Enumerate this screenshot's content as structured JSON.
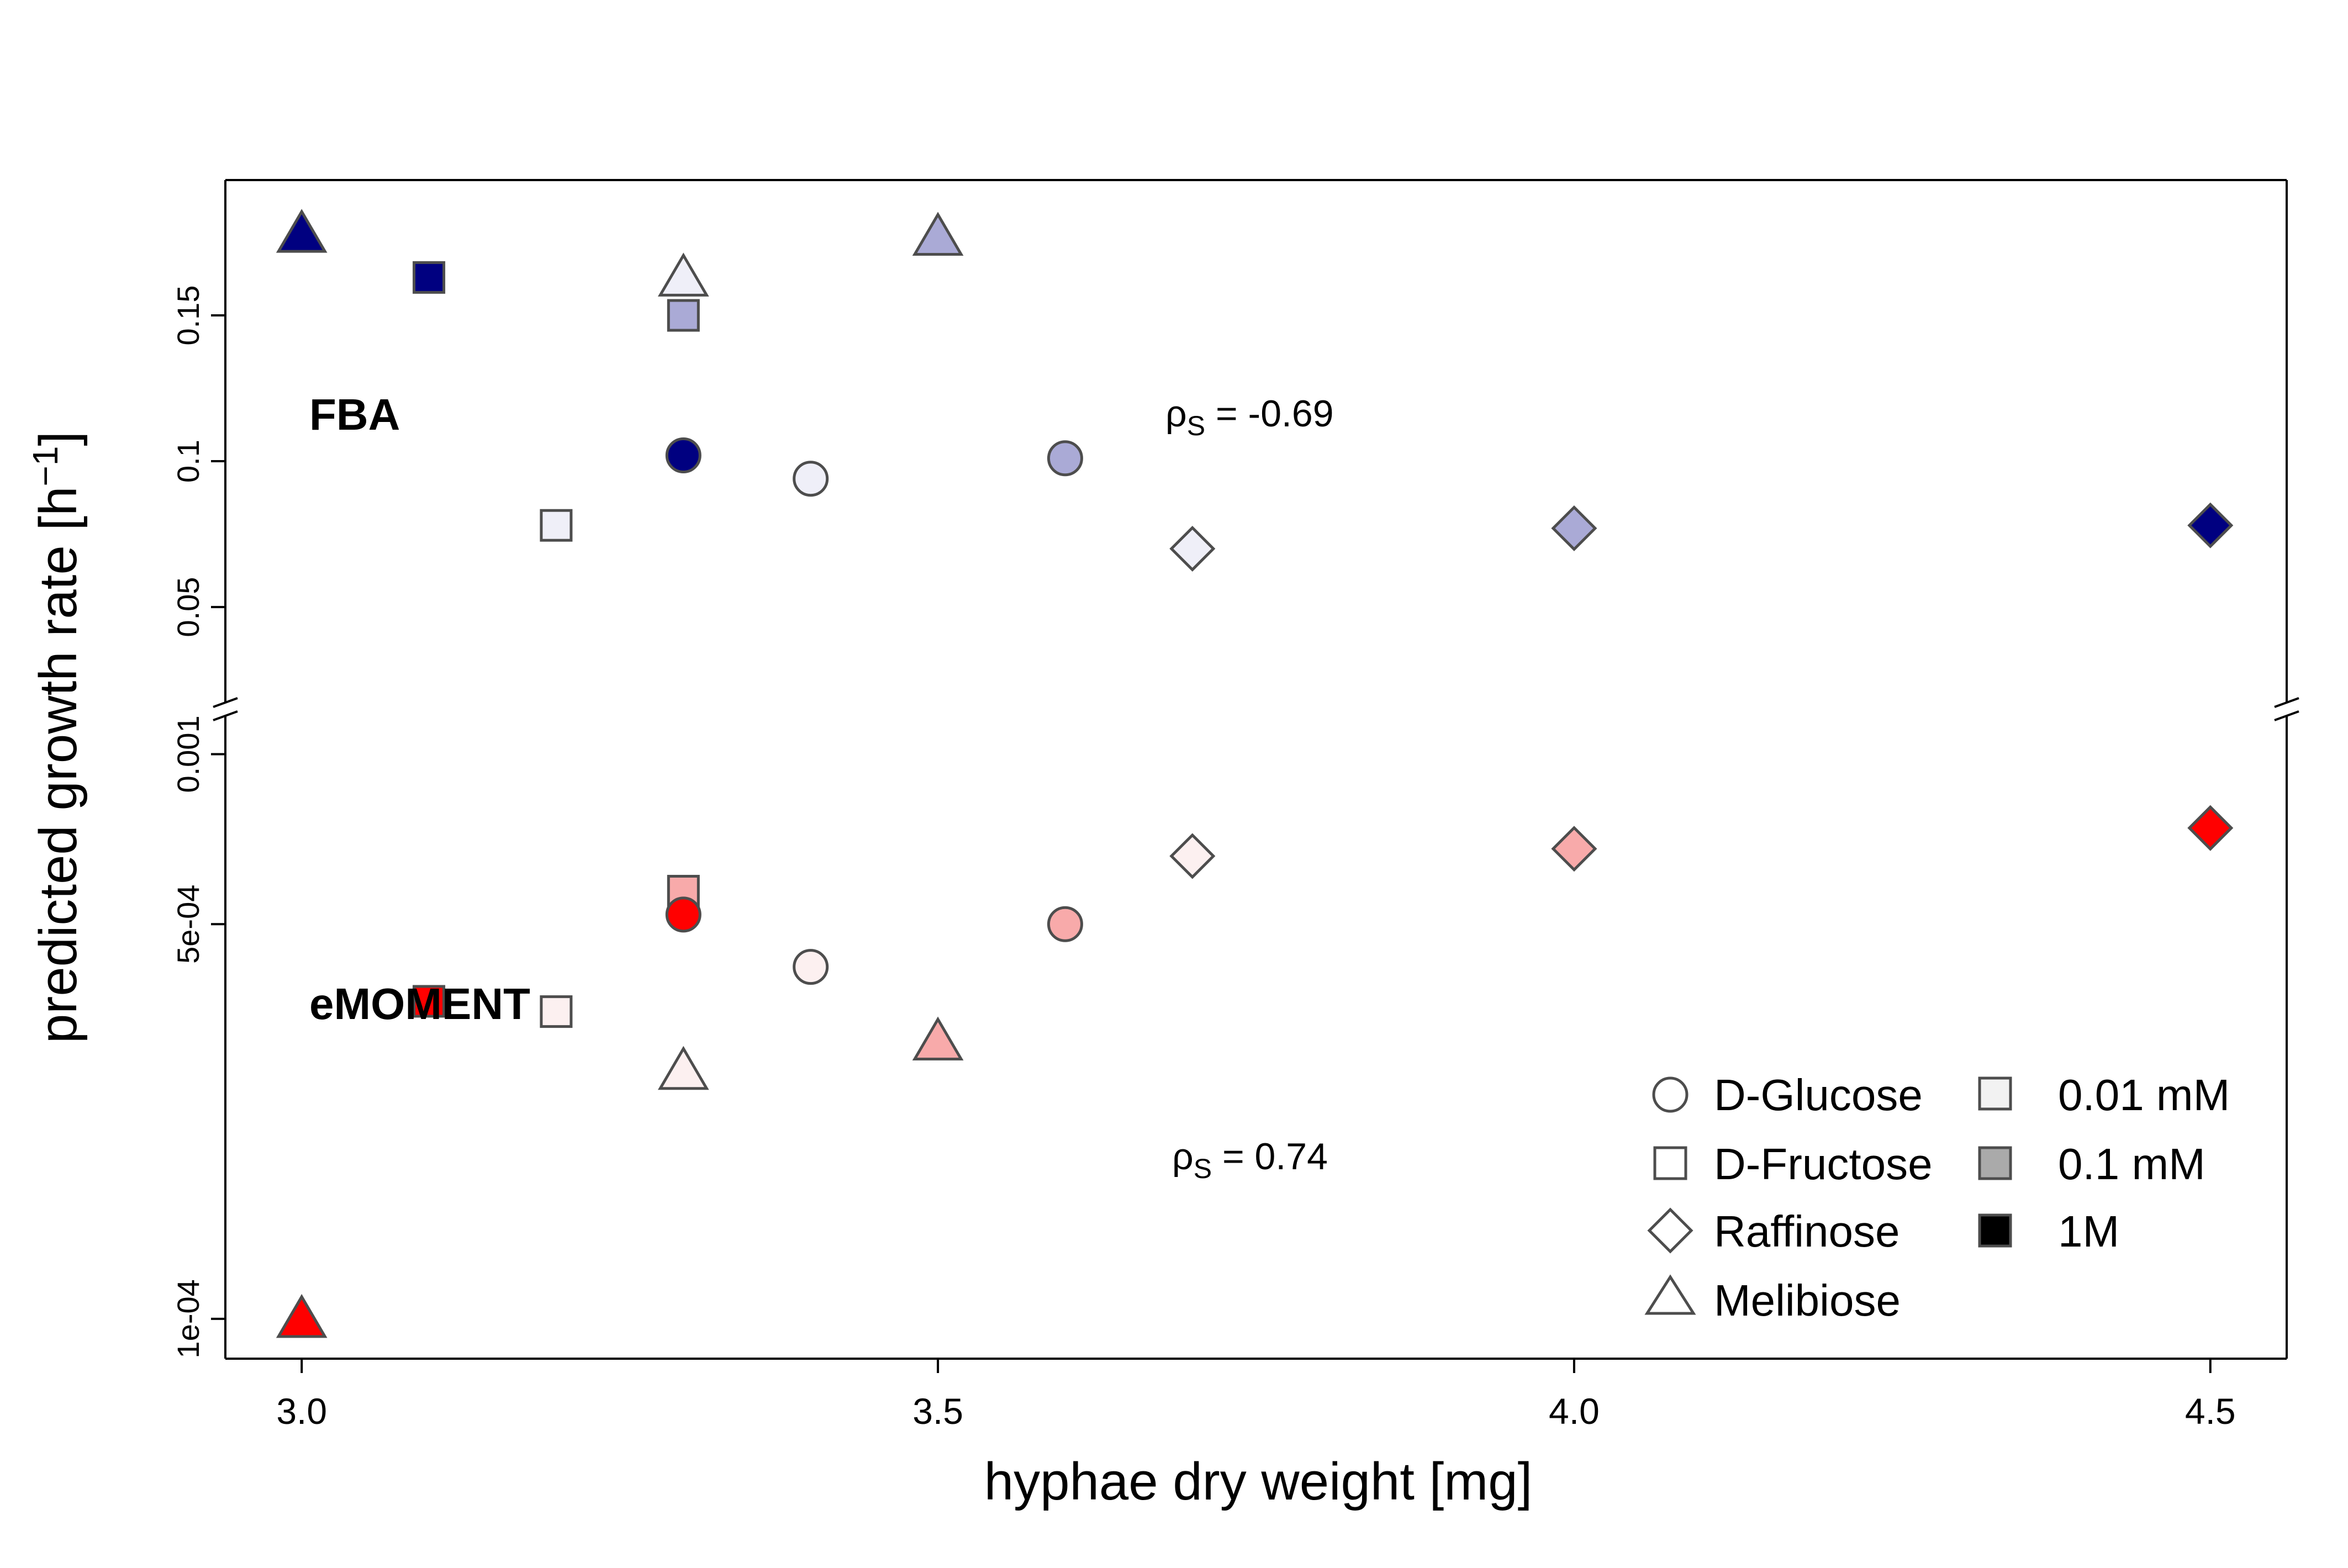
{
  "chart_data": {
    "type": "scatter",
    "xlabel": "hyphae dry weight [mg]",
    "ylabel": "predicted growth rate [h",
    "ylabel_superscript": "−1",
    "ylabel_suffix": "]",
    "xlim": [
      2.94,
      4.56
    ],
    "x_ticks": [
      3.0,
      3.5,
      4.0,
      4.5
    ],
    "x_tick_labels": [
      "3.0",
      "3.5",
      "4.0",
      "4.5"
    ],
    "axis_break": true,
    "panels": [
      {
        "label": "FBA",
        "rho_symbol": "ρ",
        "rho_sub": "S",
        "rho_text": " = -0.69",
        "scale": "linear",
        "ylim": [
          0.0165,
          0.1964
        ],
        "y_ticks": [
          0.05,
          0.1,
          0.15
        ],
        "y_tick_labels": [
          "0.05",
          "0.1",
          "0.15"
        ],
        "color_family": "blue",
        "points": [
          {
            "x": 3.0,
            "y": 0.178,
            "sugar": "Melibiose",
            "conc": "1M"
          },
          {
            "x": 3.1,
            "y": 0.163,
            "sugar": "D-Fructose",
            "conc": "1M"
          },
          {
            "x": 3.3,
            "y": 0.163,
            "sugar": "Melibiose",
            "conc": "0.01 mM"
          },
          {
            "x": 3.3,
            "y": 0.15,
            "sugar": "D-Fructose",
            "conc": "0.1 mM"
          },
          {
            "x": 3.5,
            "y": 0.177,
            "sugar": "Melibiose",
            "conc": "0.1 mM"
          },
          {
            "x": 3.3,
            "y": 0.102,
            "sugar": "D-Glucose",
            "conc": "1M"
          },
          {
            "x": 3.4,
            "y": 0.094,
            "sugar": "D-Glucose",
            "conc": "0.01 mM"
          },
          {
            "x": 3.6,
            "y": 0.101,
            "sugar": "D-Glucose",
            "conc": "0.1 mM"
          },
          {
            "x": 3.2,
            "y": 0.078,
            "sugar": "D-Fructose",
            "conc": "0.01 mM"
          },
          {
            "x": 3.7,
            "y": 0.07,
            "sugar": "Raffinose",
            "conc": "0.01 mM"
          },
          {
            "x": 4.0,
            "y": 0.077,
            "sugar": "Raffinose",
            "conc": "0.1 mM"
          },
          {
            "x": 4.5,
            "y": 0.078,
            "sugar": "Raffinose",
            "conc": "1M"
          }
        ]
      },
      {
        "label": "eMOMENT",
        "rho_symbol": "ρ",
        "rho_sub": "S",
        "rho_text": " = 0.74",
        "scale": "log",
        "ylim": [
          8.5e-05,
          0.00118
        ],
        "y_ticks": [
          0.0001,
          0.0005,
          0.001
        ],
        "y_tick_labels": [
          "1e-04",
          "5e-04",
          "0.001"
        ],
        "color_family": "red",
        "points": [
          {
            "x": 3.0,
            "y": 0.0001,
            "sugar": "Melibiose",
            "conc": "1M"
          },
          {
            "x": 3.1,
            "y": 0.000365,
            "sugar": "D-Fructose",
            "conc": "1M"
          },
          {
            "x": 3.2,
            "y": 0.00035,
            "sugar": "D-Fructose",
            "conc": "0.01 mM"
          },
          {
            "x": 3.3,
            "y": 0.000275,
            "sugar": "Melibiose",
            "conc": "0.01 mM"
          },
          {
            "x": 3.3,
            "y": 0.000572,
            "sugar": "D-Fructose",
            "conc": "0.1 mM"
          },
          {
            "x": 3.3,
            "y": 0.00052,
            "sugar": "D-Glucose",
            "conc": "1M"
          },
          {
            "x": 3.4,
            "y": 0.00042,
            "sugar": "D-Glucose",
            "conc": "0.01 mM"
          },
          {
            "x": 3.5,
            "y": 0.00031,
            "sugar": "Melibiose",
            "conc": "0.1 mM"
          },
          {
            "x": 3.6,
            "y": 0.0005,
            "sugar": "D-Glucose",
            "conc": "0.1 mM"
          },
          {
            "x": 3.7,
            "y": 0.00066,
            "sugar": "Raffinose",
            "conc": "0.01 mM"
          },
          {
            "x": 4.0,
            "y": 0.00068,
            "sugar": "Raffinose",
            "conc": "0.1 mM"
          },
          {
            "x": 4.5,
            "y": 0.00074,
            "sugar": "Raffinose",
            "conc": "1M"
          }
        ]
      }
    ],
    "legend": {
      "placement": "bottom-right",
      "shapes": [
        {
          "label": "D-Glucose",
          "shape": "circle"
        },
        {
          "label": "D-Fructose",
          "shape": "square"
        },
        {
          "label": "Raffinose",
          "shape": "diamond"
        },
        {
          "label": "Melibiose",
          "shape": "triangle"
        }
      ],
      "concentrations": [
        {
          "label": "0.01 mM",
          "color": "#f2f2f2"
        },
        {
          "label": "0.1 mM",
          "color": "#aaaaaa"
        },
        {
          "label": "1M",
          "color": "#000000"
        }
      ]
    },
    "fill_colors": {
      "blue": {
        "0.01 mM": "#efeff8",
        "0.1 mM": "#aaaad6",
        "1M": "#000080"
      },
      "red": {
        "0.01 mM": "#fcf0f0",
        "0.1 mM": "#f8aaaa",
        "1M": "#ff0000"
      }
    },
    "shape_for_sugar": {
      "D-Glucose": "circle",
      "D-Fructose": "square",
      "Raffinose": "diamond",
      "Melibiose": "triangle"
    }
  }
}
